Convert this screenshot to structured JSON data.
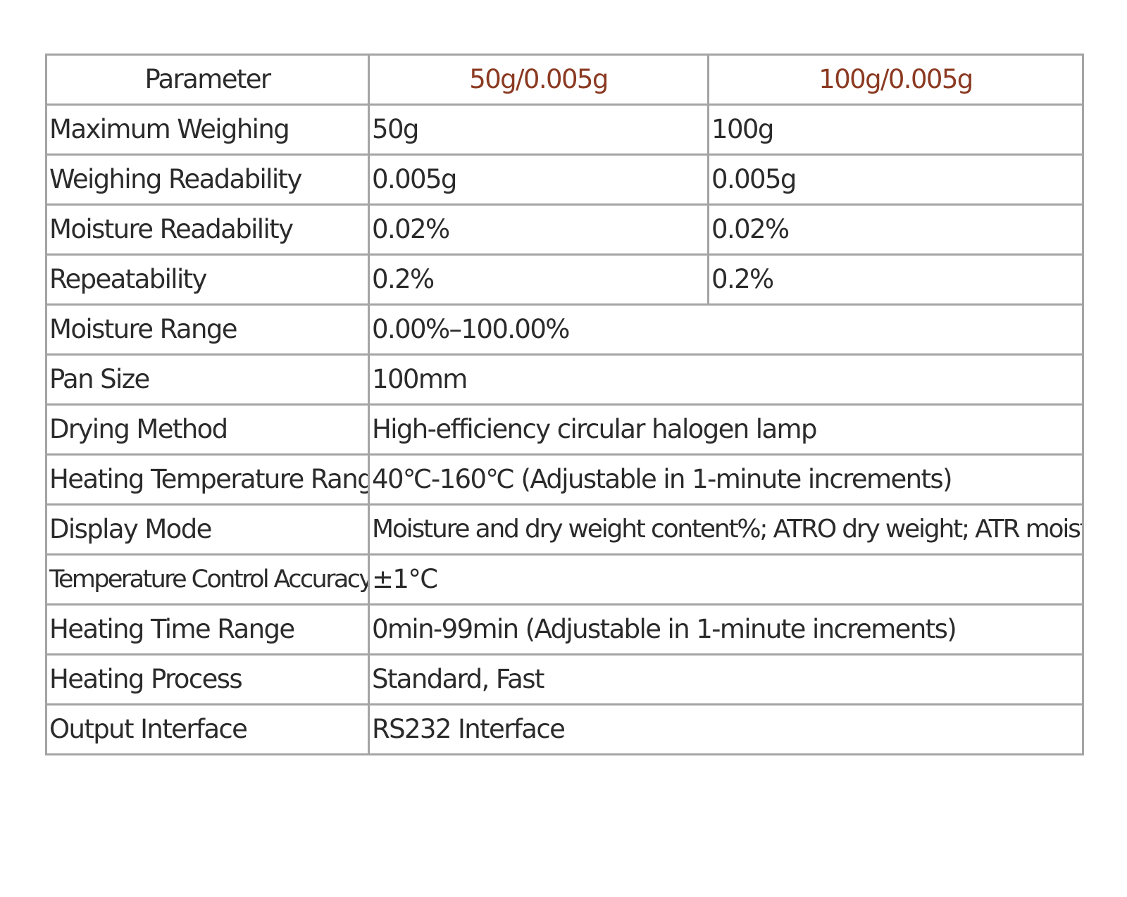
{
  "table": {
    "header": {
      "parameter": "Parameter",
      "model_a": "50g/0.005g",
      "model_b": "100g/0.005g"
    },
    "rows": [
      {
        "param": "Maximum Weighing",
        "a": "50g",
        "b": "100g"
      },
      {
        "param": "Weighing Readability",
        "a": "0.005g",
        "b": "0.005g"
      },
      {
        "param": "Moisture Readability",
        "a": "0.02%",
        "b": "0.02%"
      },
      {
        "param": "Repeatability",
        "a": "0.2%",
        "b": "0.2%"
      },
      {
        "param": "Moisture Range",
        "value": "0.00%–100.00%"
      },
      {
        "param": "Pan Size",
        "value": "100mm"
      },
      {
        "param": "Drying Method",
        "value": "High-efficiency circular halogen lamp"
      },
      {
        "param": "Heating Temperature Range",
        "value": "40℃-160℃ (Adjustable in 1-minute increments)"
      },
      {
        "param": "Display Mode",
        "value": "Moisture and dry weight content%; ATRO dry weight; ATR moisture"
      },
      {
        "param": "Temperature Control Accuracy",
        "value": "±1°C"
      },
      {
        "param": "Heating Time Range",
        "value": "0min-99min (Adjustable in 1-minute increments)"
      },
      {
        "param": "Heating Process",
        "value": "Standard, Fast"
      },
      {
        "param": "Output Interface",
        "value": "RS232 Interface"
      }
    ]
  },
  "colors": {
    "model_header_text": "#8b3a22",
    "border": "#a4a4a4",
    "text": "#2b2b2b"
  }
}
